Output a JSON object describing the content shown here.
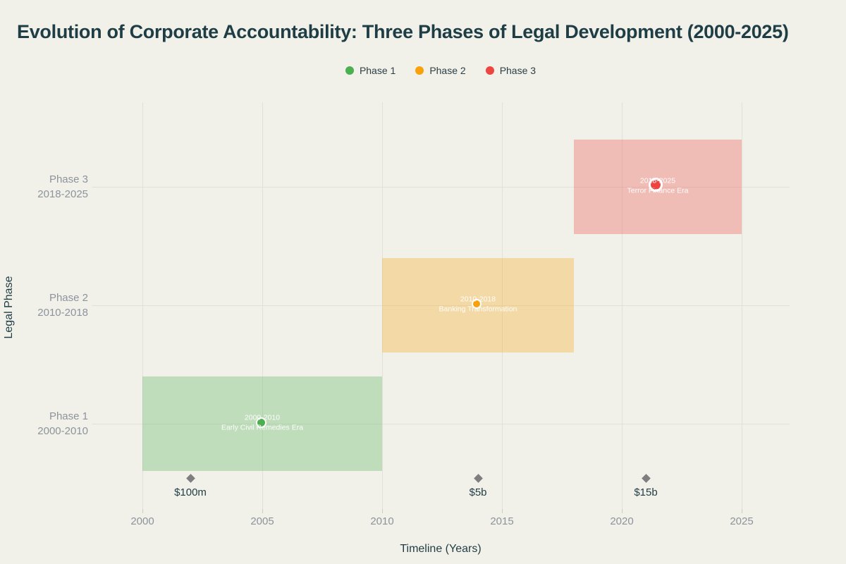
{
  "title": "Evolution of Corporate Accountability: Three Phases of Legal Development (2000-2025)",
  "colors": {
    "background": "#f1f1ea",
    "grid": "#e1e1d8",
    "title_text": "#1e3d45",
    "axis_tick_text": "#8c939c",
    "axis_title_text": "#1f3c44",
    "annotation_text": "#ffffff",
    "milestone_marker": "#7e7e7e",
    "phase1": "#4caf50",
    "phase2": "#f9a10a",
    "phase3": "#ee4540"
  },
  "legend": {
    "items": [
      {
        "label": "Phase 1",
        "color": "#4caf50"
      },
      {
        "label": "Phase 2",
        "color": "#f9a10a"
      },
      {
        "label": "Phase 3",
        "color": "#ee4540"
      }
    ]
  },
  "chart_data": {
    "type": "bar",
    "subtype": "gantt-timeline",
    "title": "Evolution of Corporate Accountability: Three Phases of Legal Development (2000-2025)",
    "xlabel": "Timeline (Years)",
    "ylabel": "Legal Phase",
    "x_ticks": [
      2000,
      2005,
      2010,
      2015,
      2020,
      2025
    ],
    "xlim": [
      1998,
      2027
    ],
    "grid": true,
    "legend_position": "top-center",
    "phases": [
      {
        "name": "Phase 1",
        "range": "2000-2010",
        "start": 2000,
        "end": 2010,
        "era": "Early Civil Remedies Era",
        "color": "#4caf50",
        "marker_year": 2005,
        "marker_size": 15
      },
      {
        "name": "Phase 2",
        "range": "2010-2018",
        "start": 2010,
        "end": 2018,
        "era": "Banking Transformation",
        "color": "#f9a10a",
        "marker_year": 2014,
        "marker_size": 14
      },
      {
        "name": "Phase 3",
        "range": "2018-2025",
        "start": 2018,
        "end": 2025,
        "era": "Terror Finance Era",
        "color": "#ee4540",
        "marker_year": 2021.5,
        "marker_size": 20
      }
    ],
    "milestones": [
      {
        "year": 2002,
        "label": "$100m"
      },
      {
        "year": 2014,
        "label": "$5b"
      },
      {
        "year": 2021,
        "label": "$15b"
      }
    ]
  }
}
